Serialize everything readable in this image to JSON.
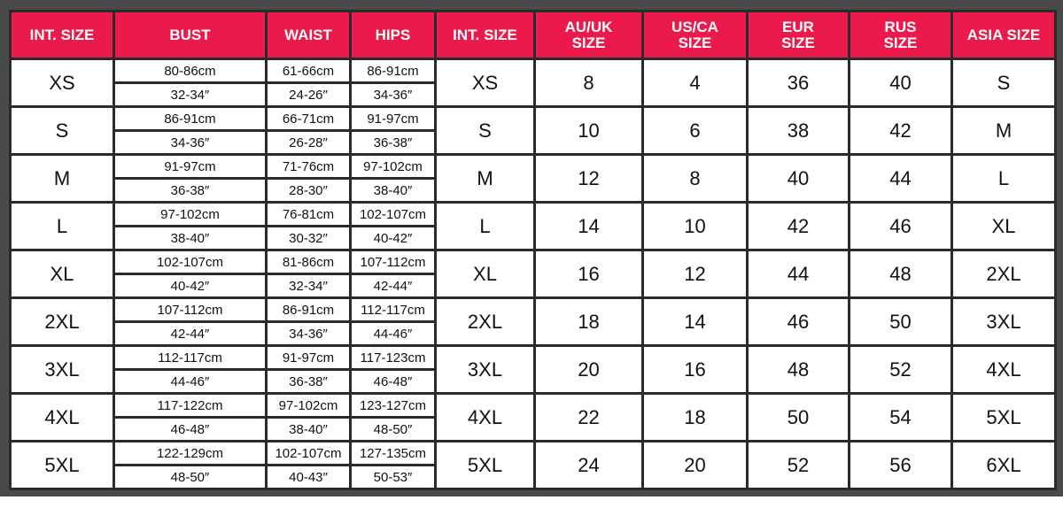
{
  "colors": {
    "header_bg": "#ec1a4b",
    "frame": "#4a4a4a",
    "border": "#2a2a2a"
  },
  "headers": [
    "INT. SIZE",
    "BUST",
    "WAIST",
    "HIPS",
    "INT. SIZE",
    "AU/UK SIZE",
    "US/CA SIZE",
    "EUR SIZE",
    "RUS SIZE",
    "ASIA SIZE"
  ],
  "rows": [
    {
      "size": "XS",
      "bust": [
        "80-86cm",
        "32-34″"
      ],
      "waist": [
        "61-66cm",
        "24-26″"
      ],
      "hips": [
        "86-91cm",
        "34-36″"
      ],
      "int": "XS",
      "au": "8",
      "us": "4",
      "eur": "36",
      "rus": "40",
      "asia": "S"
    },
    {
      "size": "S",
      "bust": [
        "86-91cm",
        "34-36″"
      ],
      "waist": [
        "66-71cm",
        "26-28″"
      ],
      "hips": [
        "91-97cm",
        "36-38″"
      ],
      "int": "S",
      "au": "10",
      "us": "6",
      "eur": "38",
      "rus": "42",
      "asia": "M"
    },
    {
      "size": "M",
      "bust": [
        "91-97cm",
        "36-38″"
      ],
      "waist": [
        "71-76cm",
        "28-30″"
      ],
      "hips": [
        "97-102cm",
        "38-40″"
      ],
      "int": "M",
      "au": "12",
      "us": "8",
      "eur": "40",
      "rus": "44",
      "asia": "L"
    },
    {
      "size": "L",
      "bust": [
        "97-102cm",
        "38-40″"
      ],
      "waist": [
        "76-81cm",
        "30-32″"
      ],
      "hips": [
        "102-107cm",
        "40-42″"
      ],
      "int": "L",
      "au": "14",
      "us": "10",
      "eur": "42",
      "rus": "46",
      "asia": "XL"
    },
    {
      "size": "XL",
      "bust": [
        "102-107cm",
        "40-42″"
      ],
      "waist": [
        "81-86cm",
        "32-34″"
      ],
      "hips": [
        "107-112cm",
        "42-44″"
      ],
      "int": "XL",
      "au": "16",
      "us": "12",
      "eur": "44",
      "rus": "48",
      "asia": "2XL"
    },
    {
      "size": "2XL",
      "bust": [
        "107-112cm",
        "42-44″"
      ],
      "waist": [
        "86-91cm",
        "34-36″"
      ],
      "hips": [
        "112-117cm",
        "44-46″"
      ],
      "int": "2XL",
      "au": "18",
      "us": "14",
      "eur": "46",
      "rus": "50",
      "asia": "3XL"
    },
    {
      "size": "3XL",
      "bust": [
        "112-117cm",
        "44-46″"
      ],
      "waist": [
        "91-97cm",
        "36-38″"
      ],
      "hips": [
        "117-123cm",
        "46-48″"
      ],
      "int": "3XL",
      "au": "20",
      "us": "16",
      "eur": "48",
      "rus": "52",
      "asia": "4XL"
    },
    {
      "size": "4XL",
      "bust": [
        "117-122cm",
        "46-48″"
      ],
      "waist": [
        "97-102cm",
        "38-40″"
      ],
      "hips": [
        "123-127cm",
        "48-50″"
      ],
      "int": "4XL",
      "au": "22",
      "us": "18",
      "eur": "50",
      "rus": "54",
      "asia": "5XL"
    },
    {
      "size": "5XL",
      "bust": [
        "122-129cm",
        "48-50″"
      ],
      "waist": [
        "102-107cm",
        "40-43″"
      ],
      "hips": [
        "127-135cm",
        "50-53″"
      ],
      "int": "5XL",
      "au": "24",
      "us": "20",
      "eur": "52",
      "rus": "56",
      "asia": "6XL"
    }
  ]
}
